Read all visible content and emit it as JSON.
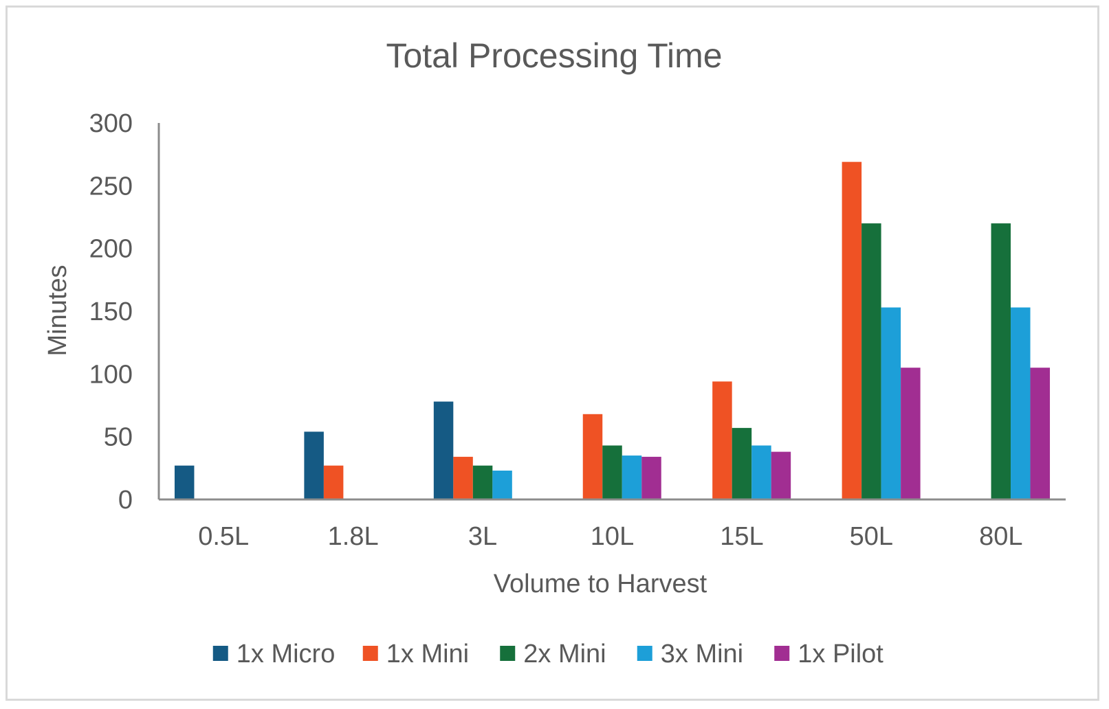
{
  "chart_data": {
    "type": "bar",
    "title": "Total Processing Time",
    "xlabel": "Volume to Harvest",
    "ylabel": "Minutes",
    "ylim": [
      0,
      300
    ],
    "yticks": [
      "0",
      "50",
      "100",
      "150",
      "200",
      "250",
      "300"
    ],
    "categories": [
      "0.5L",
      "1.8L",
      "3L",
      "10L",
      "15L",
      "50L",
      "80L"
    ],
    "series": [
      {
        "name": "1x Micro",
        "color": "#155a84",
        "values": [
          27,
          54,
          78,
          0,
          0,
          0,
          0
        ]
      },
      {
        "name": "1x Mini",
        "color": "#ef5224",
        "values": [
          0,
          27,
          34,
          68,
          94,
          269,
          0
        ]
      },
      {
        "name": "2x Mini",
        "color": "#16703b",
        "values": [
          0,
          0,
          27,
          43,
          57,
          220,
          220
        ]
      },
      {
        "name": "3x Mini",
        "color": "#1d9fd8",
        "values": [
          0,
          0,
          23,
          35,
          43,
          153,
          153
        ]
      },
      {
        "name": "1x Pilot",
        "color": "#a12e92",
        "values": [
          0,
          0,
          0,
          34,
          38,
          105,
          105
        ]
      }
    ],
    "legend_position": "bottom",
    "grid": false
  }
}
